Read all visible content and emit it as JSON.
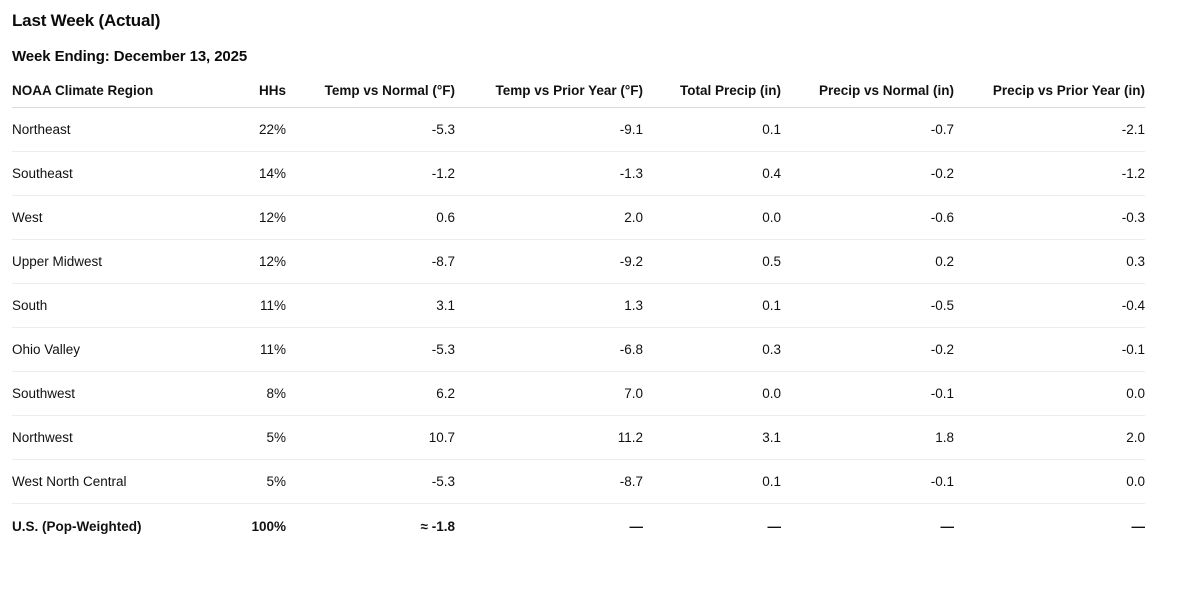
{
  "page": {
    "title": "Last Week (Actual)",
    "subtitle": "Week Ending: December 13, 2025"
  },
  "colors": {
    "background": "#ffffff",
    "text": "#111111",
    "header_border": "#d9d9d9",
    "row_divider": "#ececec"
  },
  "chart_data": {
    "type": "table",
    "title": "Last Week (Actual)",
    "subtitle": "Week Ending: December 13, 2025",
    "columns": [
      "NOAA Climate Region",
      "HHs",
      "Temp vs Normal (°F)",
      "Temp vs Prior Year (°F)",
      "Total Precip (in)",
      "Precip vs Normal (in)",
      "Precip vs Prior Year (in)"
    ],
    "rows": [
      [
        "Northeast",
        "22%",
        "-5.3",
        "-9.1",
        "0.1",
        "-0.7",
        "-2.1"
      ],
      [
        "Southeast",
        "14%",
        "-1.2",
        "-1.3",
        "0.4",
        "-0.2",
        "-1.2"
      ],
      [
        "West",
        "12%",
        "0.6",
        "2.0",
        "0.0",
        "-0.6",
        "-0.3"
      ],
      [
        "Upper Midwest",
        "12%",
        "-8.7",
        "-9.2",
        "0.5",
        "0.2",
        "0.3"
      ],
      [
        "South",
        "11%",
        "3.1",
        "1.3",
        "0.1",
        "-0.5",
        "-0.4"
      ],
      [
        "Ohio Valley",
        "11%",
        "-5.3",
        "-6.8",
        "0.3",
        "-0.2",
        "-0.1"
      ],
      [
        "Southwest",
        "8%",
        "6.2",
        "7.0",
        "0.0",
        "-0.1",
        "0.0"
      ],
      [
        "Northwest",
        "5%",
        "10.7",
        "11.2",
        "3.1",
        "1.8",
        "2.0"
      ],
      [
        "West North Central",
        "5%",
        "-5.3",
        "-8.7",
        "0.1",
        "-0.1",
        "0.0"
      ]
    ],
    "total_row": [
      "U.S. (Pop-Weighted)",
      "100%",
      "≈ -1.8",
      "—",
      "—",
      "—",
      "—"
    ]
  }
}
